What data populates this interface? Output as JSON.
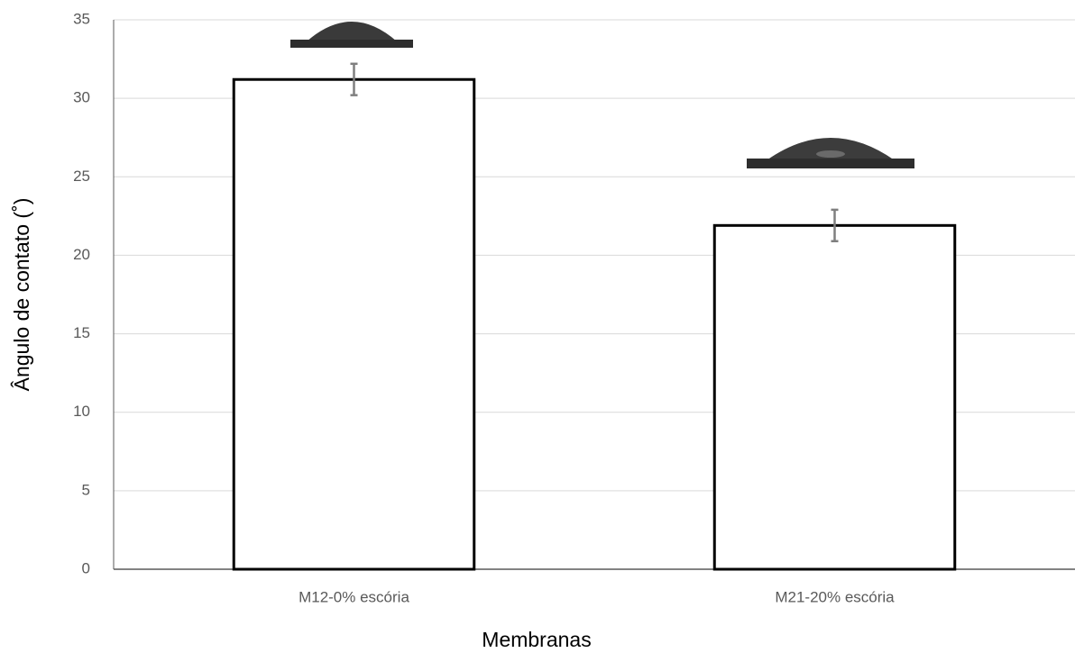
{
  "chart_data": {
    "type": "bar",
    "categories": [
      "M12-0% escória",
      "M21-20% escória"
    ],
    "values": [
      31.2,
      21.9
    ],
    "errors": [
      1.0,
      1.0
    ],
    "color": "#ffffff",
    "ylim": [
      0,
      35
    ],
    "yticks": [
      0,
      5,
      10,
      15,
      20,
      25,
      30,
      35
    ],
    "grid": true,
    "x_label": "Membranas",
    "y_label": "Ângulo de contato (˚)"
  }
}
